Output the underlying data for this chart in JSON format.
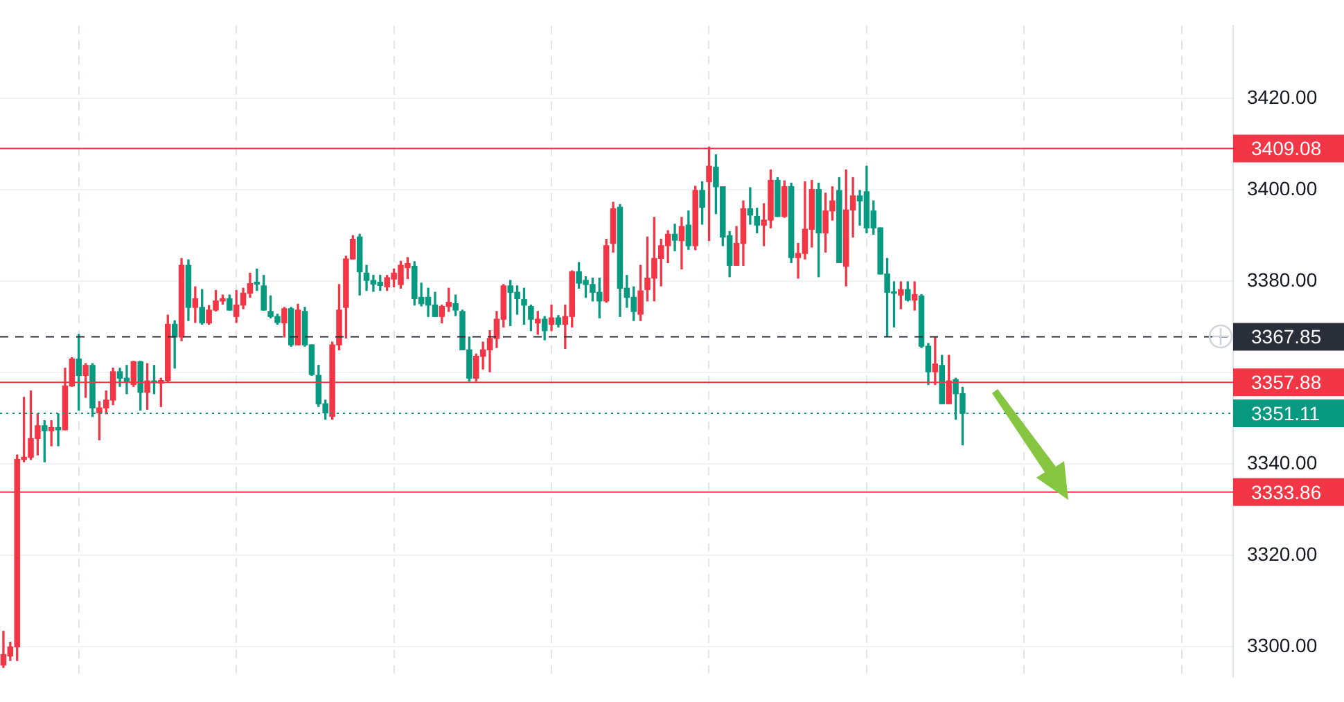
{
  "chart_data": {
    "type": "candlestick",
    "categories": [
      null,
      null,
      null,
      null,
      null,
      null,
      null,
      null,
      null,
      null,
      null,
      null,
      null,
      null,
      null,
      null,
      null,
      null,
      null,
      null,
      null,
      null,
      null,
      null,
      null,
      null,
      null,
      null,
      null,
      null,
      null,
      null,
      null,
      null,
      null,
      null,
      null,
      null,
      null,
      null,
      null,
      null,
      null,
      null,
      null,
      null,
      null,
      null,
      null,
      null,
      null,
      null,
      null,
      null,
      null,
      null,
      null,
      null,
      null,
      null,
      null,
      null,
      null,
      null,
      null,
      null,
      null,
      null,
      null,
      null,
      null,
      null,
      null,
      null,
      null,
      null,
      null,
      null,
      null,
      null,
      null,
      null,
      null,
      null,
      null,
      null,
      null,
      null,
      null,
      null,
      null,
      null,
      null,
      null,
      null,
      null,
      null,
      null,
      null,
      null,
      null,
      null,
      null,
      null,
      null,
      null,
      null,
      null,
      null,
      null,
      null,
      null,
      null,
      null,
      null,
      null,
      null,
      null,
      null,
      null,
      null,
      null,
      null,
      null,
      null,
      null,
      null,
      null,
      null,
      null,
      null,
      null,
      null,
      null,
      null,
      null,
      null,
      null,
      null,
      null,
      null,
      null,
      null,
      null,
      null,
      null,
      null,
      null,
      null,
      null,
      null,
      null,
      null,
      null,
      null,
      null,
      null,
      null,
      null,
      null,
      null,
      null,
      null,
      null,
      null,
      null,
      null,
      null,
      null,
      null,
      null,
      null,
      null,
      null,
      null,
      null,
      null,
      null,
      null,
      null
    ],
    "ohlc": [
      [
        3296,
        3303.4,
        3295.5,
        3298.3
      ],
      [
        3298,
        3301,
        3297,
        3300
      ],
      [
        3300,
        3342,
        3297,
        3341
      ],
      [
        3341,
        3354.6,
        3340.5,
        3341.5
      ],
      [
        3341.5,
        3356,
        3341,
        3345.6
      ],
      [
        3345.6,
        3351,
        3342,
        3348.4
      ],
      [
        3348.4,
        3349.5,
        3340.5,
        3347.3
      ],
      [
        3347.3,
        3349.5,
        3344,
        3348
      ],
      [
        3348,
        3351,
        3344,
        3347.5
      ],
      [
        3347.5,
        3361,
        3347.5,
        3357.1
      ],
      [
        3357.1,
        3363.3,
        3357,
        3363
      ],
      [
        3363,
        3368.4,
        3351.8,
        3359.4
      ],
      [
        3359.4,
        3362,
        3354.6,
        3361.6
      ],
      [
        3361.6,
        3362,
        3350.4,
        3352.3
      ],
      [
        3351.2,
        3353.7,
        3345.3,
        3352.3
      ],
      [
        3352.3,
        3356,
        3351,
        3354
      ],
      [
        3354,
        3361,
        3353,
        3360.2
      ],
      [
        3360.2,
        3361,
        3357,
        3358.8
      ],
      [
        3358.8,
        3361.6,
        3355.4,
        3358
      ],
      [
        3357.4,
        3362.5,
        3357,
        3362.4
      ],
      [
        3362.4,
        3362.5,
        3351.8,
        3355.7
      ],
      [
        3355.7,
        3362,
        3352,
        3358.2
      ],
      [
        3358.2,
        3361.6,
        3355.4,
        3357.8
      ],
      [
        3357.7,
        3358.8,
        3352.6,
        3358.3
      ],
      [
        3358.3,
        3372.6,
        3358,
        3370.6
      ],
      [
        3370.6,
        3371.4,
        3361,
        3367.8
      ],
      [
        3367.8,
        3385,
        3367,
        3383.5
      ],
      [
        3383.5,
        3384.7,
        3371.4,
        3374.3
      ],
      [
        3374.3,
        3378.8,
        3371,
        3376.2
      ],
      [
        3374.3,
        3378.2,
        3370.6,
        3370.9
      ],
      [
        3370.9,
        3374.7,
        3370.6,
        3373.7
      ],
      [
        3373.7,
        3378,
        3373.5,
        3375.7
      ],
      [
        3375.7,
        3377,
        3375,
        3376.2
      ],
      [
        3376.2,
        3377,
        3373.7,
        3373.7
      ],
      [
        3372.3,
        3378,
        3371,
        3374.8
      ],
      [
        3374.8,
        3378.5,
        3374,
        3377.4
      ],
      [
        3377.4,
        3381.8,
        3376.5,
        3379.5
      ],
      [
        3379.8,
        3382.7,
        3378,
        3379.4
      ],
      [
        3379,
        3381.3,
        3373.7,
        3373.7
      ],
      [
        3373.4,
        3376.8,
        3372,
        3372.3
      ],
      [
        3372.3,
        3372.8,
        3370.6,
        3371
      ],
      [
        3370.9,
        3374.3,
        3367.8,
        3374
      ],
      [
        3374,
        3374.3,
        3365.8,
        3366.1
      ],
      [
        3366.1,
        3375,
        3366.1,
        3373.7
      ],
      [
        3373.4,
        3374.3,
        3365.8,
        3366.1
      ],
      [
        3366.1,
        3366.1,
        3359.4,
        3359.6
      ],
      [
        3359.4,
        3361.6,
        3352.6,
        3353.2
      ],
      [
        3353.2,
        3354,
        3349.8,
        3351.2
      ],
      [
        3350.4,
        3366.7,
        3349.8,
        3366.1
      ],
      [
        3366.1,
        3379.3,
        3365,
        3373.7
      ],
      [
        3374.3,
        3385.5,
        3367.6,
        3384.9
      ],
      [
        3384.9,
        3390,
        3384.9,
        3389.2
      ],
      [
        3389.7,
        3390.3,
        3377,
        3382.1
      ],
      [
        3381.8,
        3383.5,
        3378,
        3380.2
      ],
      [
        3380.2,
        3381.3,
        3377.8,
        3379.4
      ],
      [
        3379.8,
        3381.3,
        3378,
        3379.1
      ],
      [
        3378.8,
        3381.3,
        3378,
        3380.8
      ],
      [
        3380.5,
        3382.7,
        3378.8,
        3381.8
      ],
      [
        3379.3,
        3384.4,
        3378.5,
        3383.5
      ],
      [
        3383,
        3385.2,
        3380.6,
        3383.9
      ],
      [
        3383.3,
        3384.3,
        3374.8,
        3376.2
      ],
      [
        3376.5,
        3379.6,
        3374.6,
        3375.1
      ],
      [
        3376.5,
        3378.5,
        3372.3,
        3374.8
      ],
      [
        3374.8,
        3377.6,
        3372.3,
        3372.3
      ],
      [
        3372.3,
        3374.8,
        3370.9,
        3374.5
      ],
      [
        3374.5,
        3378.5,
        3373.4,
        3375.4
      ],
      [
        3375.1,
        3377,
        3372.5,
        3373.7
      ],
      [
        3373.4,
        3373.7,
        3365,
        3365
      ],
      [
        3365,
        3367.8,
        3358.2,
        3358.8
      ],
      [
        3358.8,
        3364.1,
        3358.2,
        3363.6
      ],
      [
        3363.6,
        3366.7,
        3360.8,
        3365
      ],
      [
        3365,
        3369.2,
        3360.2,
        3367.5
      ],
      [
        3367.5,
        3373.4,
        3365.5,
        3371.7
      ],
      [
        3371.7,
        3379.3,
        3370,
        3379
      ],
      [
        3379,
        3380.2,
        3370.3,
        3377.6
      ],
      [
        3377.6,
        3379,
        3372.8,
        3376.2
      ],
      [
        3376,
        3378.5,
        3370.6,
        3374.8
      ],
      [
        3374.5,
        3374.8,
        3369.2,
        3371.7
      ],
      [
        3370.9,
        3373.4,
        3368.4,
        3371.7
      ],
      [
        3371.7,
        3372.3,
        3367.2,
        3369.2
      ],
      [
        3370.6,
        3374.8,
        3369.2,
        3372
      ],
      [
        3372,
        3372.5,
        3370,
        3370.6
      ],
      [
        3370.6,
        3374.8,
        3365.3,
        3372.3
      ],
      [
        3372.3,
        3382.3,
        3370,
        3382.1
      ],
      [
        3382.1,
        3384.1,
        3378.5,
        3379.6
      ],
      [
        3380.2,
        3381,
        3376.5,
        3379.3
      ],
      [
        3379.3,
        3380.7,
        3375.7,
        3377.6
      ],
      [
        3377.6,
        3380.7,
        3372,
        3375.7
      ],
      [
        3375.7,
        3389.2,
        3375.4,
        3387.8
      ],
      [
        3388.3,
        3397.3,
        3386.4,
        3395.9
      ],
      [
        3396.2,
        3396.8,
        3372.3,
        3378.5
      ],
      [
        3378.5,
        3381.3,
        3374.3,
        3376.5
      ],
      [
        3376.5,
        3378.8,
        3371.4,
        3373.4
      ],
      [
        3372.8,
        3383.5,
        3371.4,
        3377.9
      ],
      [
        3378.2,
        3389.7,
        3375.7,
        3380.7
      ],
      [
        3380.7,
        3394,
        3375.7,
        3385
      ],
      [
        3385,
        3389.2,
        3379,
        3387.8
      ],
      [
        3387.8,
        3391.1,
        3384.1,
        3390.3
      ],
      [
        3390.3,
        3392.5,
        3386.7,
        3389
      ],
      [
        3388.9,
        3394,
        3382.7,
        3392
      ],
      [
        3392.3,
        3395.4,
        3387,
        3387.8
      ],
      [
        3387.8,
        3400.8,
        3386.9,
        3399.9
      ],
      [
        3399.9,
        3401.8,
        3392.5,
        3396.2
      ],
      [
        3401.8,
        3409.4,
        3388.9,
        3405.2
      ],
      [
        3405,
        3407.7,
        3394.8,
        3400.7
      ],
      [
        3400.7,
        3400.7,
        3387.8,
        3389.7
      ],
      [
        3390,
        3390.9,
        3381,
        3383.5
      ],
      [
        3383.5,
        3392,
        3383.5,
        3388.3
      ],
      [
        3388.3,
        3397.6,
        3383.5,
        3395.9
      ],
      [
        3395.9,
        3400.5,
        3392.5,
        3394.5
      ],
      [
        3394.2,
        3396,
        3390.6,
        3392.3
      ],
      [
        3392.3,
        3397,
        3387.8,
        3393.4
      ],
      [
        3393.4,
        3404.4,
        3391.7,
        3402.1
      ],
      [
        3402.1,
        3402.7,
        3394.2,
        3394.2
      ],
      [
        3394.2,
        3402,
        3394,
        3400.7
      ],
      [
        3400.7,
        3401.5,
        3384.1,
        3385.2
      ],
      [
        3385.2,
        3388.3,
        3380.7,
        3386.1
      ],
      [
        3386.1,
        3401.8,
        3384.9,
        3391.4
      ],
      [
        3391.4,
        3402.1,
        3387.5,
        3400.1
      ],
      [
        3400.1,
        3401.5,
        3381,
        3390.6
      ],
      [
        3390.6,
        3399.3,
        3386.4,
        3395.4
      ],
      [
        3395.4,
        3400.7,
        3393.4,
        3397.6
      ],
      [
        3399.9,
        3402.7,
        3384.1,
        3384.1
      ],
      [
        3383.3,
        3404.4,
        3379,
        3395.6
      ],
      [
        3395.6,
        3402.7,
        3389.7,
        3398.7
      ],
      [
        3398.7,
        3399.9,
        3392.3,
        3397.6
      ],
      [
        3399.6,
        3405.2,
        3390.6,
        3391.7
      ],
      [
        3395.4,
        3397.6,
        3390.3,
        3391.7
      ],
      [
        3391.7,
        3391.7,
        3381.6,
        3381.6
      ],
      [
        3381.6,
        3385,
        3368,
        3377.6
      ],
      [
        3377.6,
        3379.9,
        3370,
        3377.4
      ],
      [
        3377,
        3379.9,
        3374,
        3378.2
      ],
      [
        3378.2,
        3379.9,
        3375.7,
        3375.9
      ],
      [
        3375.9,
        3379.9,
        3373.7,
        3377.1
      ],
      [
        3376.8,
        3377.1,
        3365.5,
        3365.8
      ],
      [
        3365.8,
        3366.4,
        3357.4,
        3360.2
      ],
      [
        3360.2,
        3367.8,
        3357.4,
        3361.9
      ],
      [
        3361.6,
        3363.8,
        3353.2,
        3353.2
      ],
      [
        3353.2,
        3363.8,
        3353.2,
        3358.2
      ],
      [
        3358.5,
        3358.8,
        3349.8,
        3355.4
      ],
      [
        3355.4,
        3356.8,
        3344.2,
        3351.11
      ],
      null,
      null,
      null,
      null,
      null,
      null,
      null,
      null,
      null,
      null,
      null,
      null,
      null,
      null,
      null,
      null,
      null,
      null,
      null,
      null,
      null,
      null,
      null,
      null,
      null,
      null,
      null,
      null,
      null,
      null,
      null,
      null,
      null,
      null,
      null,
      null,
      null,
      null,
      null
    ],
    "colors": [
      "#f23645",
      "#f23645",
      "#f23645",
      "#f23645",
      "#f23645",
      "#f23645",
      "#089981",
      "#f23645",
      "#089981",
      "#f23645",
      "#f23645",
      "#089981",
      "#f23645",
      "#089981",
      "#f23645",
      "#f23645",
      "#f23645",
      "#089981",
      "#089981",
      "#f23645",
      "#089981",
      "#f23645",
      "#089981",
      "#f23645",
      "#f23645",
      "#089981",
      "#f23645",
      "#089981",
      "#f23645",
      "#089981",
      "#f23645",
      "#f23645",
      "#f23645",
      "#089981",
      "#f23645",
      "#f23645",
      "#f23645",
      "#089981",
      "#089981",
      "#089981",
      "#089981",
      "#f23645",
      "#089981",
      "#f23645",
      "#089981",
      "#089981",
      "#089981",
      "#089981",
      "#f23645",
      "#f23645",
      "#f23645",
      "#f23645",
      "#089981",
      "#089981",
      "#089981",
      "#089981",
      "#f23645",
      "#f23645",
      "#f23645",
      "#f23645",
      "#089981",
      "#089981",
      "#089981",
      "#089981",
      "#f23645",
      "#f23645",
      "#089981",
      "#089981",
      "#089981",
      "#f23645",
      "#f23645",
      "#f23645",
      "#f23645",
      "#f23645",
      "#089981",
      "#089981",
      "#089981",
      "#089981",
      "#f23645",
      "#089981",
      "#f23645",
      "#089981",
      "#f23645",
      "#f23645",
      "#089981",
      "#089981",
      "#089981",
      "#089981",
      "#f23645",
      "#f23645",
      "#089981",
      "#089981",
      "#089981",
      "#f23645",
      "#f23645",
      "#f23645",
      "#f23645",
      "#f23645",
      "#089981",
      "#f23645",
      "#089981",
      "#f23645",
      "#089981",
      "#f23645",
      "#089981",
      "#089981",
      "#089981",
      "#f23645",
      "#f23645",
      "#089981",
      "#089981",
      "#f23645",
      "#f23645",
      "#089981",
      "#f23645",
      "#089981",
      "#f23645",
      "#f23645",
      "#f23645",
      "#089981",
      "#f23645",
      "#f23645",
      "#089981",
      "#f23645",
      "#f23645",
      "#089981",
      "#089981",
      "#089981",
      "#089981",
      "#089981",
      "#089981",
      "#f23645",
      "#089981",
      "#f23645",
      "#089981",
      "#089981",
      "#f23645",
      "#089981",
      "#f23645",
      "#089981",
      "#089981",
      null,
      null,
      null,
      null,
      null,
      null,
      null,
      null,
      null,
      null,
      null,
      null,
      null,
      null,
      null,
      null,
      null,
      null,
      null,
      null,
      null,
      null,
      null,
      null,
      null,
      null,
      null,
      null,
      null,
      null,
      null,
      null,
      null,
      null,
      null,
      null,
      null,
      null,
      null
    ],
    "ylim": [
      3293.5,
      3436
    ],
    "yticks": [
      {
        "value": 3300,
        "label": "3300.00"
      },
      {
        "value": 3320,
        "label": "3320.00"
      },
      {
        "value": 3340,
        "label": "3340.00"
      },
      {
        "value": 3360,
        "label": null
      },
      {
        "value": 3380,
        "label": "3380.00"
      },
      {
        "value": 3400,
        "label": "3400.00"
      },
      {
        "value": 3420,
        "label": "3420.00"
      }
    ],
    "tick_labels": "y",
    "grid": true,
    "ref_lines": [
      {
        "axis": "y",
        "value": 3409.08,
        "label": "3409.08",
        "color": "#f23645",
        "line_style": "solid"
      },
      {
        "axis": "y",
        "value": 3367.85,
        "label": "3367.85",
        "color": "#2a2e39",
        "line_style": "dashed"
      },
      {
        "axis": "y",
        "value": 3357.88,
        "label": "3357.88",
        "color": "#f23645",
        "line_style": "solid"
      },
      {
        "axis": "y",
        "value": 3351.11,
        "label": "3351.11",
        "color": "#089981",
        "line_style": "dotted"
      },
      {
        "axis": "y",
        "value": 3333.86,
        "label": "3333.86",
        "color": "#f23645",
        "line_style": "solid"
      }
    ]
  }
}
